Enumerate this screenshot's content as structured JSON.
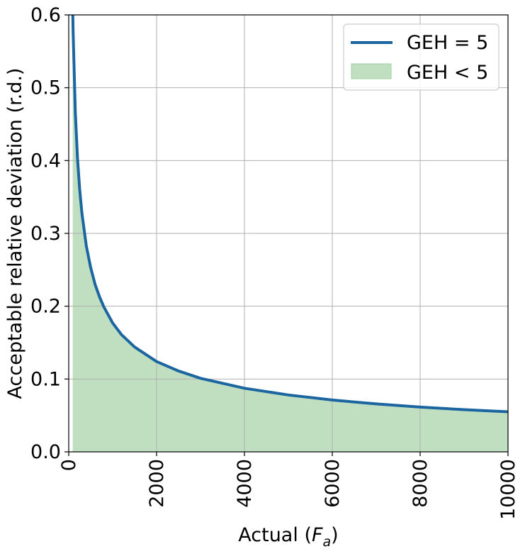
{
  "chart_data": {
    "type": "line",
    "title": "",
    "xlabel": "Actual",
    "xlabel_math": "F",
    "xlabel_math_sub": "a",
    "ylabel": "Acceptable relative deviation (r.d.)",
    "xlim": [
      0,
      10000
    ],
    "ylim": [
      0,
      0.6
    ],
    "x_ticks": [
      0,
      2000,
      4000,
      6000,
      8000,
      10000
    ],
    "x_tick_labels": [
      "0",
      "2000",
      "4000",
      "6000",
      "8000",
      "10000"
    ],
    "y_ticks": [
      0.0,
      0.1,
      0.2,
      0.3,
      0.4,
      0.5,
      0.6
    ],
    "y_tick_labels": [
      "0.0",
      "0.1",
      "0.2",
      "0.3",
      "0.4",
      "0.5",
      "0.6"
    ],
    "grid": true,
    "legend_position": "top-right",
    "series": [
      {
        "name": "GEH = 5",
        "kind": "line",
        "color": "#1b65a0",
        "x": [
          90,
          100,
          150,
          200,
          250,
          300,
          400,
          500,
          600,
          700,
          800,
          1000,
          1200,
          1500,
          2000,
          2500,
          3000,
          4000,
          5000,
          6000,
          7000,
          8000,
          9000,
          10000
        ],
        "y": [
          0.61,
          0.577,
          0.466,
          0.403,
          0.36,
          0.328,
          0.283,
          0.253,
          0.23,
          0.213,
          0.199,
          0.177,
          0.161,
          0.144,
          0.124,
          0.111,
          0.101,
          0.0874,
          0.0781,
          0.0712,
          0.0658,
          0.0615,
          0.058,
          0.055
        ]
      },
      {
        "name": "GEH < 5",
        "kind": "area",
        "color": "#c0dfc0",
        "edge_color": "#9fd09f",
        "below_series": "GEH = 5"
      }
    ]
  }
}
